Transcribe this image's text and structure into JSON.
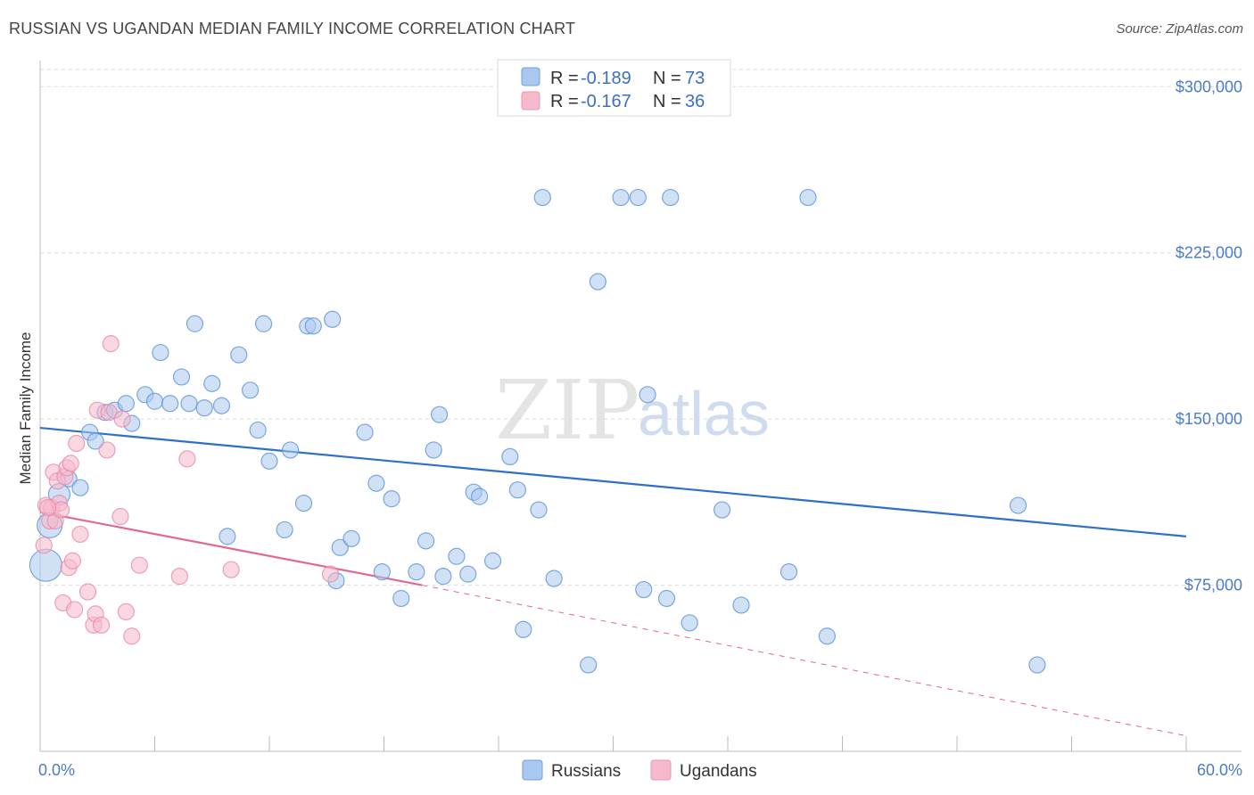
{
  "title": "RUSSIAN VS UGANDAN MEDIAN FAMILY INCOME CORRELATION CHART",
  "source": "Source: ZipAtlas.com",
  "watermark": {
    "zip": "ZIP",
    "atlas": "atlas"
  },
  "legend": {
    "russians": {
      "r_label": "R =",
      "r_value": "-0.189",
      "n_label": "N =",
      "n_value": "73",
      "color": "#a9c8ef"
    },
    "ugandans": {
      "r_label": "R =",
      "r_value": "-0.167",
      "n_label": "N =",
      "n_value": "36",
      "color": "#f6b8cb"
    }
  },
  "bottom_legend": {
    "russians": "Russians",
    "ugandans": "Ugandans"
  },
  "chart_data": {
    "type": "scatter",
    "title": "RUSSIAN VS UGANDAN MEDIAN FAMILY INCOME CORRELATION CHART",
    "xlabel": "",
    "ylabel": "Median Family Income",
    "xlim": [
      0,
      60
    ],
    "ylim": [
      0,
      315000
    ],
    "x_tick_labels": [
      "0.0%",
      "60.0%"
    ],
    "y_ticks": [
      75000,
      150000,
      225000,
      300000
    ],
    "y_tick_labels": [
      "$75,000",
      "$150,000",
      "$225,000",
      "$300,000"
    ],
    "grid": true,
    "series": [
      {
        "name": "Russians",
        "color": "#5b93d9",
        "fill": "#a9c8ef",
        "trend": {
          "x0": 0,
          "y0": 146000,
          "x1": 60,
          "y1": 97000,
          "color": "#2e6fcc"
        },
        "points": [
          [
            0.3,
            84000
          ],
          [
            0.5,
            102000
          ],
          [
            1.0,
            116000
          ],
          [
            1.5,
            123000
          ],
          [
            2.1,
            119000
          ],
          [
            2.6,
            144000
          ],
          [
            2.9,
            140000
          ],
          [
            3.4,
            153000
          ],
          [
            3.9,
            154000
          ],
          [
            4.5,
            157000
          ],
          [
            4.8,
            148000
          ],
          [
            5.5,
            161000
          ],
          [
            6.0,
            158000
          ],
          [
            6.3,
            180000
          ],
          [
            6.8,
            157000
          ],
          [
            7.4,
            169000
          ],
          [
            7.8,
            157000
          ],
          [
            8.1,
            193000
          ],
          [
            8.6,
            155000
          ],
          [
            9.0,
            166000
          ],
          [
            9.5,
            156000
          ],
          [
            9.8,
            97000
          ],
          [
            10.4,
            179000
          ],
          [
            11.0,
            163000
          ],
          [
            11.4,
            145000
          ],
          [
            11.7,
            193000
          ],
          [
            12.0,
            131000
          ],
          [
            12.8,
            100000
          ],
          [
            13.1,
            136000
          ],
          [
            13.8,
            112000
          ],
          [
            14.0,
            192000
          ],
          [
            14.3,
            192000
          ],
          [
            15.3,
            195000
          ],
          [
            15.5,
            77000
          ],
          [
            15.7,
            92000
          ],
          [
            16.3,
            96000
          ],
          [
            17.0,
            144000
          ],
          [
            17.6,
            121000
          ],
          [
            17.9,
            81000
          ],
          [
            18.4,
            114000
          ],
          [
            18.9,
            69000
          ],
          [
            19.7,
            81000
          ],
          [
            20.2,
            95000
          ],
          [
            20.6,
            136000
          ],
          [
            20.9,
            152000
          ],
          [
            21.1,
            79000
          ],
          [
            21.8,
            88000
          ],
          [
            22.4,
            80000
          ],
          [
            22.7,
            117000
          ],
          [
            23.0,
            115000
          ],
          [
            23.7,
            86000
          ],
          [
            24.6,
            133000
          ],
          [
            25.0,
            118000
          ],
          [
            25.3,
            55000
          ],
          [
            26.1,
            109000
          ],
          [
            26.9,
            78000
          ],
          [
            26.3,
            250000
          ],
          [
            28.7,
            39000
          ],
          [
            29.2,
            212000
          ],
          [
            30.4,
            250000
          ],
          [
            31.3,
            250000
          ],
          [
            31.6,
            73000
          ],
          [
            31.8,
            161000
          ],
          [
            32.8,
            69000
          ],
          [
            33.0,
            250000
          ],
          [
            34.0,
            58000
          ],
          [
            35.7,
            109000
          ],
          [
            36.7,
            66000
          ],
          [
            39.2,
            81000
          ],
          [
            40.2,
            250000
          ],
          [
            41.2,
            52000
          ],
          [
            51.2,
            111000
          ],
          [
            52.2,
            39000
          ]
        ]
      },
      {
        "name": "Ugandans",
        "color": "#e88aab",
        "fill": "#f6b8cb",
        "trend": {
          "x0": 0,
          "y0": 108000,
          "x1": 20,
          "y1": 75000,
          "color": "#e2688f"
        },
        "trend_dashed": {
          "x0": 20,
          "y0": 75000,
          "x1": 60,
          "y1": 7000
        },
        "points": [
          [
            0.2,
            93000
          ],
          [
            0.3,
            111000
          ],
          [
            0.5,
            104000
          ],
          [
            0.6,
            110000
          ],
          [
            0.7,
            126000
          ],
          [
            0.8,
            104000
          ],
          [
            0.9,
            122000
          ],
          [
            1.0,
            112000
          ],
          [
            1.1,
            109000
          ],
          [
            1.2,
            67000
          ],
          [
            1.3,
            124000
          ],
          [
            1.4,
            128000
          ],
          [
            1.5,
            83000
          ],
          [
            1.6,
            130000
          ],
          [
            1.7,
            86000
          ],
          [
            1.8,
            64000
          ],
          [
            1.9,
            139000
          ],
          [
            2.1,
            98000
          ],
          [
            2.5,
            72000
          ],
          [
            2.8,
            57000
          ],
          [
            2.9,
            62000
          ],
          [
            3.0,
            154000
          ],
          [
            3.2,
            57000
          ],
          [
            3.5,
            136000
          ],
          [
            3.6,
            153000
          ],
          [
            3.7,
            184000
          ],
          [
            4.2,
            106000
          ],
          [
            4.3,
            150000
          ],
          [
            4.5,
            63000
          ],
          [
            4.8,
            52000
          ],
          [
            5.2,
            84000
          ],
          [
            7.3,
            79000
          ],
          [
            7.7,
            132000
          ],
          [
            10.0,
            82000
          ],
          [
            15.2,
            80000
          ],
          [
            0.4,
            110000
          ]
        ]
      }
    ]
  }
}
